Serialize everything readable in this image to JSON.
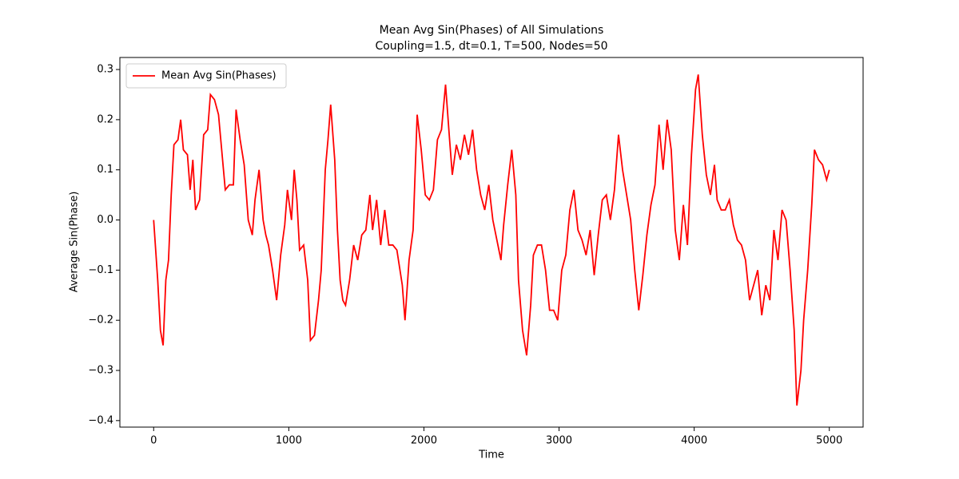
{
  "chart_data": {
    "type": "line",
    "title": "Mean Avg Sin(Phases) of All Simulations",
    "subtitle": "Coupling=1.5, dt=0.1, T=500, Nodes=50",
    "x_label": "Time",
    "y_label": "Average Sin(Phase)",
    "legend": "upper left",
    "grid": false,
    "xlim": [
      -250,
      5250
    ],
    "ylim": [
      -0.413,
      0.324
    ],
    "xticks": [
      0,
      1000,
      2000,
      3000,
      4000,
      5000
    ],
    "yticks": [
      {
        "value": -0.4,
        "label": "−0.4"
      },
      {
        "value": -0.3,
        "label": "−0.3"
      },
      {
        "value": -0.2,
        "label": "−0.2"
      },
      {
        "value": -0.1,
        "label": "−0.1"
      },
      {
        "value": 0,
        "label": "0.0"
      },
      0.1,
      0.2,
      0.3
    ],
    "x": [
      0,
      30,
      50,
      70,
      90,
      110,
      130,
      150,
      180,
      200,
      220,
      250,
      270,
      290,
      310,
      340,
      370,
      400,
      420,
      450,
      480,
      500,
      530,
      560,
      590,
      610,
      640,
      670,
      700,
      730,
      750,
      780,
      810,
      830,
      850,
      880,
      910,
      940,
      970,
      990,
      1020,
      1040,
      1060,
      1080,
      1110,
      1140,
      1160,
      1190,
      1220,
      1240,
      1270,
      1290,
      1310,
      1340,
      1360,
      1380,
      1400,
      1420,
      1450,
      1480,
      1510,
      1540,
      1570,
      1600,
      1620,
      1650,
      1680,
      1710,
      1740,
      1770,
      1800,
      1840,
      1860,
      1890,
      1920,
      1950,
      1980,
      2010,
      2040,
      2070,
      2100,
      2130,
      2160,
      2190,
      2210,
      2240,
      2270,
      2300,
      2330,
      2360,
      2390,
      2420,
      2450,
      2480,
      2510,
      2540,
      2570,
      2590,
      2620,
      2650,
      2680,
      2700,
      2730,
      2760,
      2790,
      2810,
      2840,
      2870,
      2900,
      2930,
      2960,
      2990,
      3020,
      3050,
      3080,
      3110,
      3140,
      3170,
      3200,
      3230,
      3260,
      3290,
      3320,
      3350,
      3380,
      3410,
      3440,
      3470,
      3500,
      3530,
      3560,
      3590,
      3620,
      3650,
      3680,
      3710,
      3740,
      3770,
      3800,
      3830,
      3860,
      3890,
      3920,
      3950,
      3980,
      4010,
      4030,
      4060,
      4090,
      4120,
      4150,
      4170,
      4200,
      4230,
      4260,
      4290,
      4320,
      4350,
      4380,
      4410,
      4440,
      4470,
      4500,
      4530,
      4560,
      4590,
      4620,
      4650,
      4680,
      4710,
      4740,
      4760,
      4790,
      4810,
      4840,
      4870,
      4890,
      4920,
      4950,
      4980,
      5000
    ],
    "series": [
      {
        "name": "Mean Avg Sin(Phases)",
        "color": "#ff0000",
        "values": [
          0.0,
          -0.12,
          -0.22,
          -0.25,
          -0.12,
          -0.08,
          0.05,
          0.15,
          0.16,
          0.2,
          0.14,
          0.13,
          0.06,
          0.12,
          0.02,
          0.04,
          0.17,
          0.18,
          0.25,
          0.24,
          0.21,
          0.15,
          0.06,
          0.07,
          0.07,
          0.22,
          0.16,
          0.11,
          0.0,
          -0.03,
          0.04,
          0.1,
          0.0,
          -0.03,
          -0.05,
          -0.1,
          -0.16,
          -0.07,
          -0.01,
          0.06,
          0.0,
          0.1,
          0.04,
          -0.06,
          -0.05,
          -0.12,
          -0.24,
          -0.23,
          -0.16,
          -0.1,
          0.1,
          0.16,
          0.23,
          0.12,
          -0.02,
          -0.12,
          -0.16,
          -0.17,
          -0.12,
          -0.05,
          -0.08,
          -0.03,
          -0.02,
          0.05,
          -0.02,
          0.04,
          -0.05,
          0.02,
          -0.05,
          -0.05,
          -0.06,
          -0.13,
          -0.2,
          -0.08,
          -0.02,
          0.21,
          0.14,
          0.05,
          0.04,
          0.06,
          0.16,
          0.18,
          0.27,
          0.16,
          0.09,
          0.15,
          0.12,
          0.17,
          0.13,
          0.18,
          0.1,
          0.05,
          0.02,
          0.07,
          0.0,
          -0.04,
          -0.08,
          -0.01,
          0.07,
          0.14,
          0.05,
          -0.12,
          -0.22,
          -0.27,
          -0.17,
          -0.07,
          -0.05,
          -0.05,
          -0.1,
          -0.18,
          -0.18,
          -0.2,
          -0.1,
          -0.07,
          0.02,
          0.06,
          -0.02,
          -0.04,
          -0.07,
          -0.02,
          -0.11,
          -0.03,
          0.04,
          0.05,
          0.0,
          0.06,
          0.17,
          0.1,
          0.05,
          0.0,
          -0.1,
          -0.18,
          -0.11,
          -0.03,
          0.03,
          0.07,
          0.19,
          0.1,
          0.2,
          0.14,
          -0.02,
          -0.08,
          0.03,
          -0.05,
          0.13,
          0.26,
          0.29,
          0.17,
          0.09,
          0.05,
          0.11,
          0.04,
          0.02,
          0.02,
          0.04,
          -0.01,
          -0.04,
          -0.05,
          -0.08,
          -0.16,
          -0.13,
          -0.1,
          -0.19,
          -0.13,
          -0.16,
          -0.02,
          -0.08,
          0.02,
          0.0,
          -0.1,
          -0.22,
          -0.37,
          -0.3,
          -0.2,
          -0.1,
          0.03,
          0.14,
          0.12,
          0.11,
          0.08,
          0.1
        ]
      }
    ]
  }
}
